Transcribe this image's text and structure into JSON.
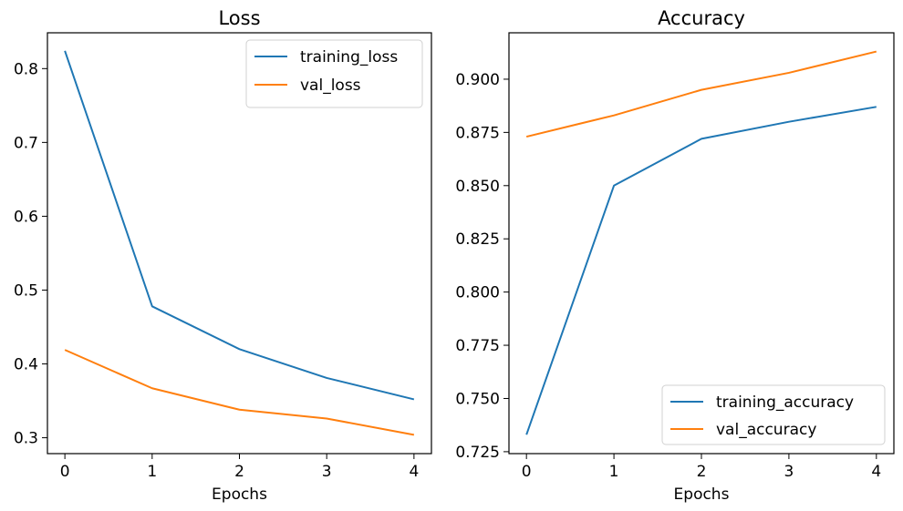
{
  "chart_data": [
    {
      "type": "line",
      "title": "Loss",
      "xlabel": "Epochs",
      "ylabel": "",
      "x": [
        0,
        1,
        2,
        3,
        4
      ],
      "xlim": [
        -0.2,
        4.2
      ],
      "ylim": [
        0.2785,
        0.8485
      ],
      "xticks": [
        "0",
        "1",
        "2",
        "3",
        "4"
      ],
      "yticks": [
        0.3,
        0.4,
        0.5,
        0.6,
        0.7,
        0.8
      ],
      "ytick_labels": [
        "0.3",
        "0.4",
        "0.5",
        "0.6",
        "0.7",
        "0.8"
      ],
      "legend_position": "top-right",
      "grid": false,
      "series": [
        {
          "name": "training_loss",
          "color": "#1f77b4",
          "values": [
            0.824,
            0.478,
            0.42,
            0.381,
            0.352
          ]
        },
        {
          "name": "val_loss",
          "color": "#ff7f0e",
          "values": [
            0.419,
            0.367,
            0.338,
            0.326,
            0.304
          ]
        }
      ]
    },
    {
      "type": "line",
      "title": "Accuracy",
      "xlabel": "Epochs",
      "ylabel": "",
      "x": [
        0,
        1,
        2,
        3,
        4
      ],
      "xlim": [
        -0.2,
        4.2
      ],
      "ylim": [
        0.7241,
        0.9218
      ],
      "xticks": [
        "0",
        "1",
        "2",
        "3",
        "4"
      ],
      "yticks": [
        0.725,
        0.75,
        0.775,
        0.8,
        0.825,
        0.85,
        0.875,
        0.9
      ],
      "ytick_labels": [
        "0.725",
        "0.750",
        "0.775",
        "0.800",
        "0.825",
        "0.850",
        "0.875",
        "0.900"
      ],
      "legend_position": "bottom-right",
      "grid": false,
      "series": [
        {
          "name": "training_accuracy",
          "color": "#1f77b4",
          "values": [
            0.733,
            0.85,
            0.872,
            0.88,
            0.887
          ]
        },
        {
          "name": "val_accuracy",
          "color": "#ff7f0e",
          "values": [
            0.873,
            0.883,
            0.895,
            0.903,
            0.913
          ]
        }
      ]
    }
  ]
}
